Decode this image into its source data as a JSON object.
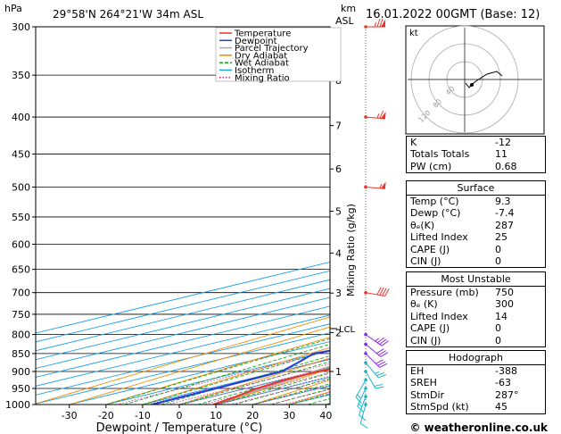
{
  "header": {
    "pressure_unit": "hPa",
    "location": "29°58'N  264°21'W  34m  ASL",
    "alt_unit_line1": "km",
    "alt_unit_line2": "ASL",
    "datetime": "16.01.2022  00GMT  (Base: 12)",
    "hodograph_unit": "kt",
    "footer": "© weatheronline.co.uk"
  },
  "legend": {
    "items": [
      {
        "label": "Temperature",
        "color": "#e8352b"
      },
      {
        "label": "Dewpoint",
        "color": "#1f3fd8"
      },
      {
        "label": "Parcel Trajectory",
        "color": "#aaaaaa"
      },
      {
        "label": "Dry Adiabat",
        "color": "#f28c00"
      },
      {
        "label": "Wet Adiabat",
        "color": "#1aa51a"
      },
      {
        "label": "Isotherm",
        "color": "#1aa0e6"
      },
      {
        "label": "Mixing Ratio",
        "color": "#cc1f9c"
      }
    ]
  },
  "indices": [
    {
      "k": "K",
      "v": "-12"
    },
    {
      "k": "Totals Totals",
      "v": "11"
    },
    {
      "k": "PW (cm)",
      "v": "0.68"
    }
  ],
  "surface": {
    "title": "Surface",
    "rows": [
      {
        "k": "Temp (°C)",
        "v": "9.3"
      },
      {
        "k": "Dewp (°C)",
        "v": "-7.4"
      },
      {
        "k": "θₑ(K)",
        "v": "287"
      },
      {
        "k": "Lifted Index",
        "v": "25"
      },
      {
        "k": "CAPE (J)",
        "v": "0"
      },
      {
        "k": "CIN (J)",
        "v": "0"
      }
    ]
  },
  "most_unstable": {
    "title": "Most Unstable",
    "rows": [
      {
        "k": "Pressure (mb)",
        "v": "750"
      },
      {
        "k": "θₑ (K)",
        "v": "300"
      },
      {
        "k": "Lifted Index",
        "v": "14"
      },
      {
        "k": "CAPE (J)",
        "v": "0"
      },
      {
        "k": "CIN (J)",
        "v": "0"
      }
    ]
  },
  "hodograph_table": {
    "title": "Hodograph",
    "rows": [
      {
        "k": "EH",
        "v": "-388"
      },
      {
        "k": "SREH",
        "v": "-63"
      },
      {
        "k": "StmDir",
        "v": "287°"
      },
      {
        "k": "StmSpd (kt)",
        "v": "45"
      }
    ]
  },
  "hodograph": {
    "ring_labels": [
      "40",
      "80",
      "120"
    ],
    "trace_color": "#000000"
  },
  "chart_data": {
    "type": "line",
    "xlabel": "Dewpoint / Temperature (°C)",
    "ylabel": "Mixing Ratio (g/kg)",
    "x_ticks": [
      -30,
      -20,
      -10,
      0,
      10,
      20,
      30,
      40
    ],
    "p_levels": [
      300,
      350,
      400,
      450,
      500,
      550,
      600,
      650,
      700,
      750,
      800,
      850,
      900,
      950,
      1000
    ],
    "km_ticks": [
      {
        "km": 1,
        "p": 900
      },
      {
        "km": 2,
        "p": 795
      },
      {
        "km": 3,
        "p": 701
      },
      {
        "km": 4,
        "p": 617
      },
      {
        "km": 5,
        "p": 540
      },
      {
        "km": 6,
        "p": 472
      },
      {
        "km": 7,
        "p": 411
      },
      {
        "km": 8,
        "p": 356
      }
    ],
    "lcl": {
      "label": "LCL",
      "p": 785
    },
    "mixing_ratio_labels": [
      "1",
      "2",
      "3",
      "4",
      "6",
      "8",
      "10",
      "15",
      "20",
      "25"
    ],
    "mixing_ratio_values": [
      1,
      2,
      3,
      4,
      6,
      8,
      10,
      15,
      20,
      25
    ],
    "temperature": {
      "color": "#e8352b",
      "p": [
        1000,
        975,
        950,
        925,
        900,
        875,
        850,
        825,
        800,
        775,
        750,
        700,
        650,
        600,
        550,
        500,
        450,
        400,
        350,
        300
      ],
      "t": [
        9.3,
        6.5,
        3.0,
        1.0,
        0.5,
        3.0,
        4.5,
        6.0,
        6.5,
        4.0,
        1.0,
        -4.5,
        -9.5,
        -15.0,
        -20.0,
        -24.5,
        -30.0,
        -36.0,
        -44.0,
        -53.0
      ]
    },
    "dewpoint": {
      "color": "#1f3fd8",
      "p": [
        1000,
        975,
        950,
        925,
        900,
        875,
        850,
        825,
        800,
        775,
        750,
        700,
        650,
        600,
        550,
        500,
        450,
        400,
        350,
        300
      ],
      "t": [
        -7.4,
        -7.8,
        -8.2,
        -8.8,
        -9.5,
        -15.0,
        -21.0,
        -17.0,
        -13.0,
        -8.5,
        -5.0,
        -4.5,
        -8.0,
        -20.0,
        -36.0,
        -51.0,
        -55.0,
        -59.0,
        -63.0,
        -68.0
      ]
    },
    "parcel": {
      "color": "#aaaaaa",
      "p": [
        1000,
        950,
        900,
        850,
        800,
        785,
        750,
        700,
        650,
        600,
        550,
        500,
        450,
        400,
        350,
        300
      ],
      "t": [
        9.3,
        4.5,
        -0.5,
        -5.5,
        -10.5,
        -12.0,
        -15.0,
        -20.0,
        -25.5,
        -31.0,
        -37.0,
        -43.0,
        -50.0,
        -57.0,
        -64.0,
        -71.0
      ]
    },
    "wind_barbs": [
      {
        "p": 1000,
        "dir": 15,
        "spd": 10
      },
      {
        "p": 975,
        "dir": 20,
        "spd": 10
      },
      {
        "p": 950,
        "dir": 25,
        "spd": 15
      },
      {
        "p": 925,
        "dir": 30,
        "spd": 15
      },
      {
        "p": 900,
        "dir": 330,
        "spd": 20
      },
      {
        "p": 875,
        "dir": 320,
        "spd": 25
      },
      {
        "p": 850,
        "dir": 315,
        "spd": 30
      },
      {
        "p": 825,
        "dir": 310,
        "spd": 30
      },
      {
        "p": 800,
        "dir": 305,
        "spd": 35
      },
      {
        "p": 700,
        "dir": 280,
        "spd": 40
      },
      {
        "p": 500,
        "dir": 275,
        "spd": 55
      },
      {
        "p": 400,
        "dir": 275,
        "spd": 65
      },
      {
        "p": 300,
        "dir": 270,
        "spd": 75
      }
    ]
  }
}
